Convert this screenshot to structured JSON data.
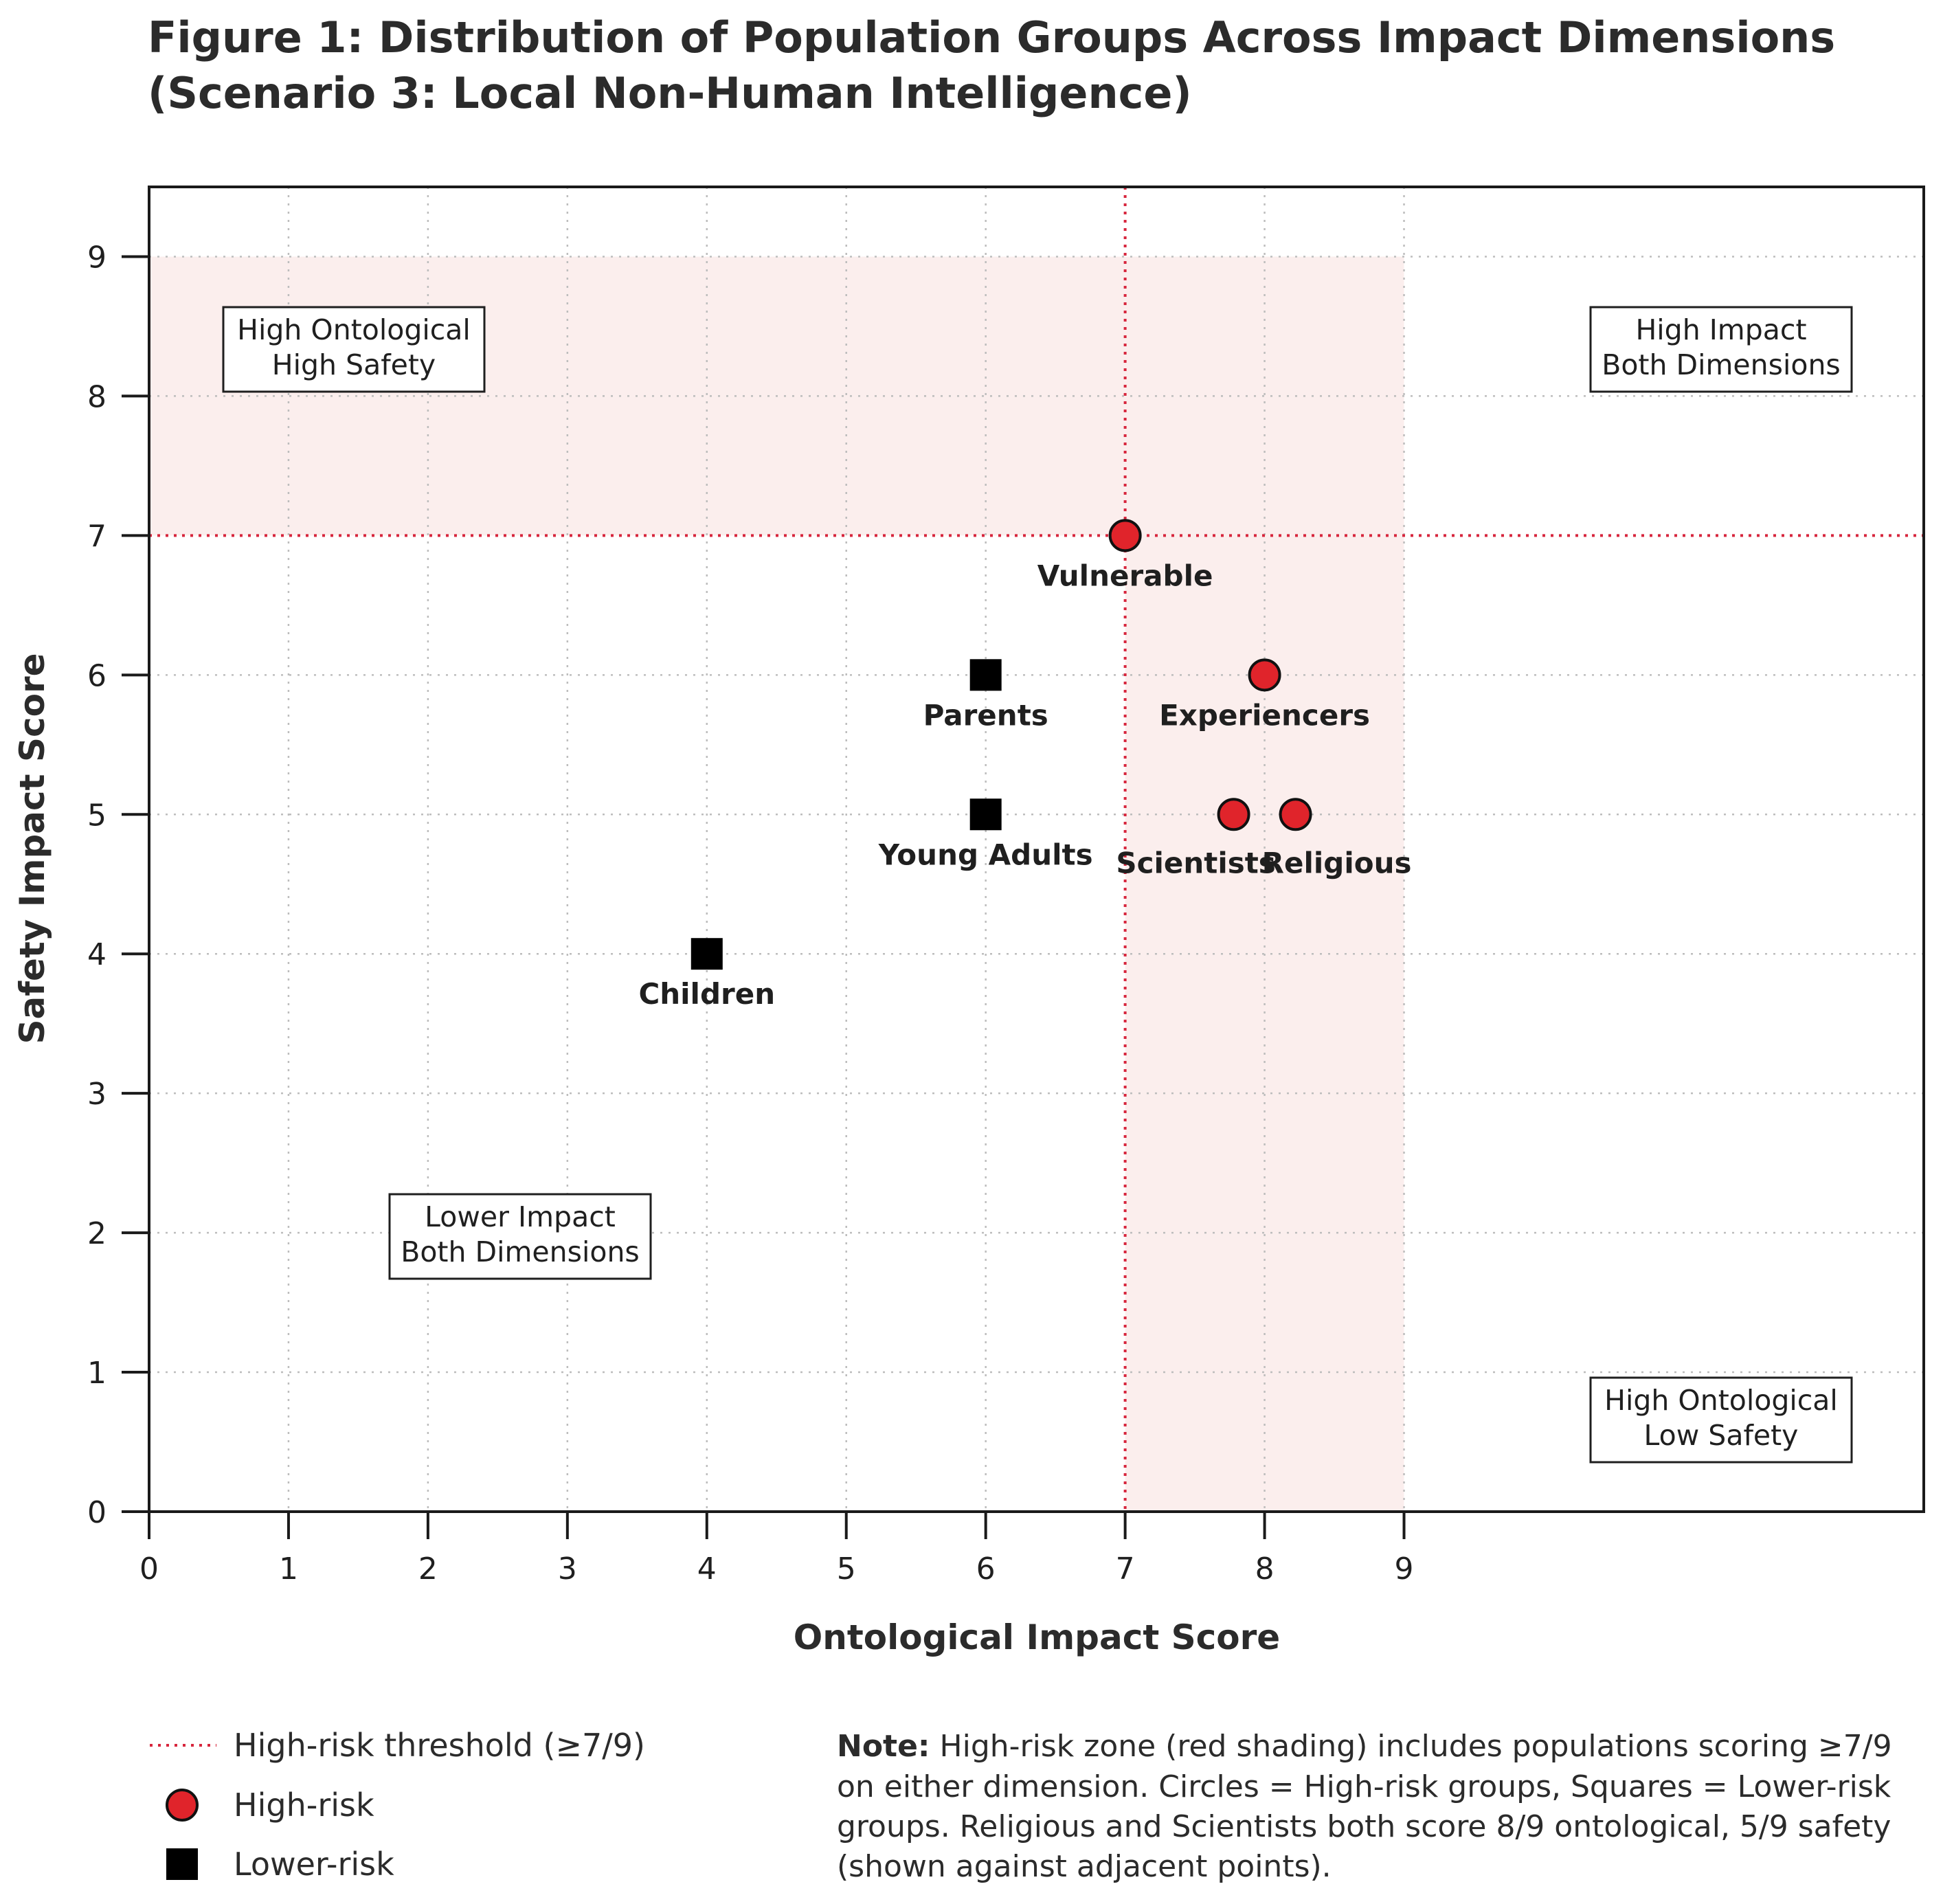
{
  "chart_data": {
    "type": "scatter",
    "title_lines": [
      "Figure 1: Distribution of Population Groups Across Impact Dimensions",
      "(Scenario 3: Local Non-Human Intelligence)"
    ],
    "xlabel": "Ontological Impact Score",
    "ylabel": "Safety Impact Score",
    "xlim": [
      0,
      9.5
    ],
    "ylim": [
      0,
      9.5
    ],
    "xticks": [
      0,
      1,
      2,
      3,
      4,
      5,
      6,
      7,
      8,
      9
    ],
    "yticks": [
      0,
      1,
      2,
      3,
      4,
      5,
      6,
      7,
      8,
      9
    ],
    "grid": true,
    "threshold": {
      "x": 7,
      "y": 7,
      "color": "#d7263d"
    },
    "shading": {
      "color": "#fbeeed",
      "regions": [
        {
          "x": [
            0,
            9
          ],
          "y": [
            7,
            9
          ]
        },
        {
          "x": [
            7,
            9
          ],
          "y": [
            0,
            9
          ]
        }
      ]
    },
    "series": [
      {
        "name": "High-risk",
        "marker": "circle",
        "color": "#e0242b",
        "points": [
          {
            "label": "Vulnerable",
            "x": 7,
            "y": 7
          },
          {
            "label": "Experiencers",
            "x": 8,
            "y": 6
          },
          {
            "label": "Scientists",
            "x": 8,
            "y": 5
          },
          {
            "label": "Religious",
            "x": 8,
            "y": 5
          }
        ]
      },
      {
        "name": "Lower-risk",
        "marker": "square",
        "color": "#000000",
        "points": [
          {
            "label": "Parents",
            "x": 6,
            "y": 6
          },
          {
            "label": "Young Adults",
            "x": 6,
            "y": 5
          },
          {
            "label": "Children",
            "x": 4,
            "y": 4
          }
        ]
      }
    ],
    "quadrant_labels": [
      {
        "lines": [
          "High Ontological",
          "High Safety"
        ]
      },
      {
        "lines": [
          "High Impact",
          "Both Dimensions"
        ]
      },
      {
        "lines": [
          "Lower Impact",
          "Both Dimensions"
        ]
      },
      {
        "lines": [
          "High Ontological",
          "Low Safety"
        ]
      }
    ],
    "legend": [
      {
        "marker": "dotted-line",
        "text": "High-risk threshold (≥7/9)"
      },
      {
        "marker": "circle",
        "text": "High-risk"
      },
      {
        "marker": "square",
        "text": "Lower-risk"
      }
    ],
    "legend_position": "bottom-left",
    "note": {
      "bold": "Note:",
      "lines": [
        " High-risk zone (red shading) includes populations scoring ≥7/9",
        "on either dimension. Circles = High-risk groups, Squares = Lower-risk",
        "groups. Religious and Scientists both score 8/9 ontological, 5/9 safety",
        "(shown against adjacent points)."
      ]
    }
  }
}
